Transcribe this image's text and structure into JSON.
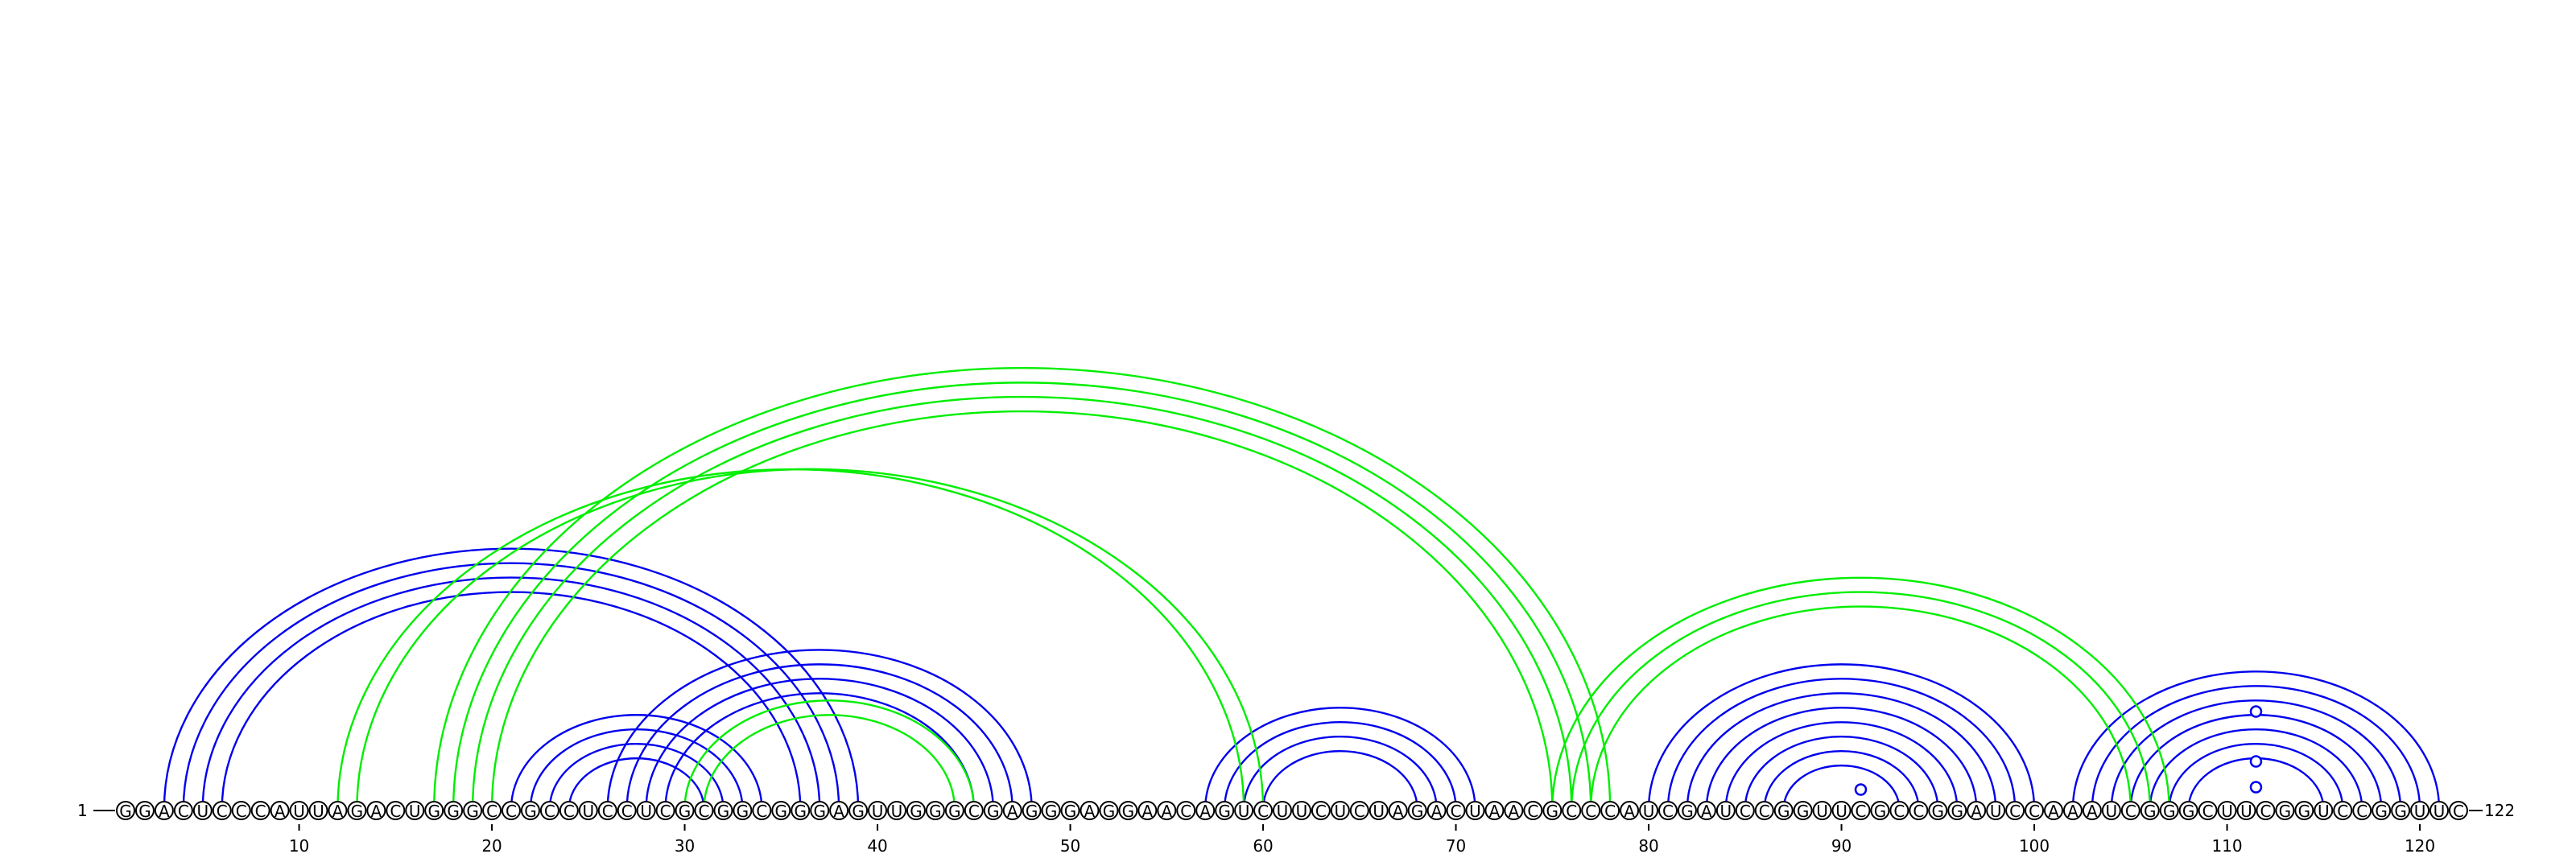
{
  "sequence": "GGACUCCCAUUAGACUGGGCCGCCUCCUCGCGGCGGGAGUUGGGCGAGGGAGGAACAGUCUUCUCUAGACUAACGCCCAUCGAUCCGGUUCGCCGGAUCCAAAUCGGGCUUCGGUCCGGUUC",
  "length": 122,
  "start_label": "1",
  "end_label": "122",
  "tick_labels": [
    "10",
    "20",
    "30",
    "40",
    "50",
    "60",
    "70",
    "80",
    "90",
    "100",
    "110",
    "120"
  ],
  "colors": {
    "blue_pairs": "#0000ee",
    "green_pairs": "#00ee00"
  },
  "chart_data": {
    "type": "arc",
    "ticks": [
      10,
      20,
      30,
      40,
      50,
      60,
      70,
      80,
      90,
      100,
      110,
      120
    ],
    "blue_pairs": [
      [
        3,
        39
      ],
      [
        4,
        38
      ],
      [
        5,
        37
      ],
      [
        6,
        36
      ],
      [
        21,
        34
      ],
      [
        22,
        33
      ],
      [
        23,
        32
      ],
      [
        24,
        31
      ],
      [
        26,
        48
      ],
      [
        27,
        47
      ],
      [
        28,
        46
      ],
      [
        29,
        45
      ],
      [
        57,
        71
      ],
      [
        58,
        70
      ],
      [
        59,
        69
      ],
      [
        60,
        68
      ],
      [
        80,
        100
      ],
      [
        81,
        99
      ],
      [
        82,
        98
      ],
      [
        83,
        97
      ],
      [
        84,
        96
      ],
      [
        85,
        95
      ],
      [
        86,
        94
      ],
      [
        87,
        93
      ],
      [
        102,
        121
      ],
      [
        103,
        120
      ],
      [
        104,
        119
      ],
      [
        105,
        118
      ],
      [
        106,
        117
      ],
      [
        107,
        116
      ],
      [
        108,
        115
      ]
    ],
    "green_pairs": [
      [
        12,
        59
      ],
      [
        13,
        60
      ],
      [
        17,
        78
      ],
      [
        18,
        77
      ],
      [
        19,
        76
      ],
      [
        20,
        75
      ],
      [
        30,
        45
      ],
      [
        31,
        44
      ],
      [
        75,
        107
      ],
      [
        76,
        106
      ],
      [
        77,
        105
      ]
    ],
    "markers": [
      90,
      111,
      111,
      111
    ]
  }
}
